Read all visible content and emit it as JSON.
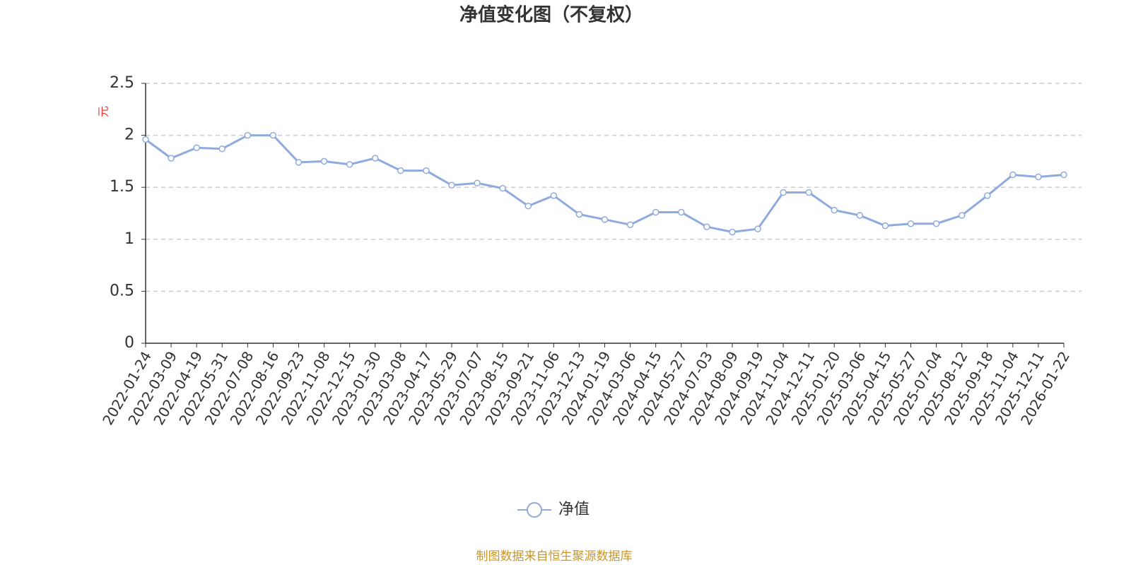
{
  "chart_data": {
    "type": "line",
    "title": "净值变化图（不复权）",
    "y_label": "元",
    "source": "制图数据来自恒生聚源数据库",
    "categories": [
      "2022-01-24",
      "2022-03-09",
      "2022-04-19",
      "2022-05-31",
      "2022-07-08",
      "2022-08-16",
      "2022-09-23",
      "2022-11-08",
      "2022-12-15",
      "2023-01-30",
      "2023-03-08",
      "2023-04-17",
      "2023-05-29",
      "2023-07-07",
      "2023-08-15",
      "2023-09-21",
      "2023-11-06",
      "2023-12-13",
      "2024-01-19",
      "2024-03-06",
      "2024-04-15",
      "2024-05-27",
      "2024-07-03",
      "2024-08-09",
      "2024-09-19",
      "2024-11-04",
      "2024-12-11",
      "2025-01-20",
      "2025-03-06",
      "2025-04-15",
      "2025-05-27",
      "2025-07-04",
      "2025-08-12",
      "2025-09-18",
      "2025-11-04",
      "2025-12-11",
      "2026-01-22"
    ],
    "series": [
      {
        "name": "净值",
        "color": "#8faadc",
        "values": [
          1.96,
          1.78,
          1.88,
          1.87,
          2.0,
          2.0,
          1.74,
          1.75,
          1.72,
          1.78,
          1.66,
          1.66,
          1.52,
          1.54,
          1.49,
          1.32,
          1.42,
          1.24,
          1.19,
          1.14,
          1.26,
          1.26,
          1.12,
          1.07,
          1.1,
          1.45,
          1.45,
          1.28,
          1.23,
          1.13,
          1.15,
          1.15,
          1.23,
          1.42,
          1.62,
          1.6,
          1.62
        ]
      }
    ],
    "ylim": [
      0,
      2.5
    ],
    "yticks": [
      0,
      0.5,
      1,
      1.5,
      2,
      2.5
    ],
    "grid": true
  }
}
